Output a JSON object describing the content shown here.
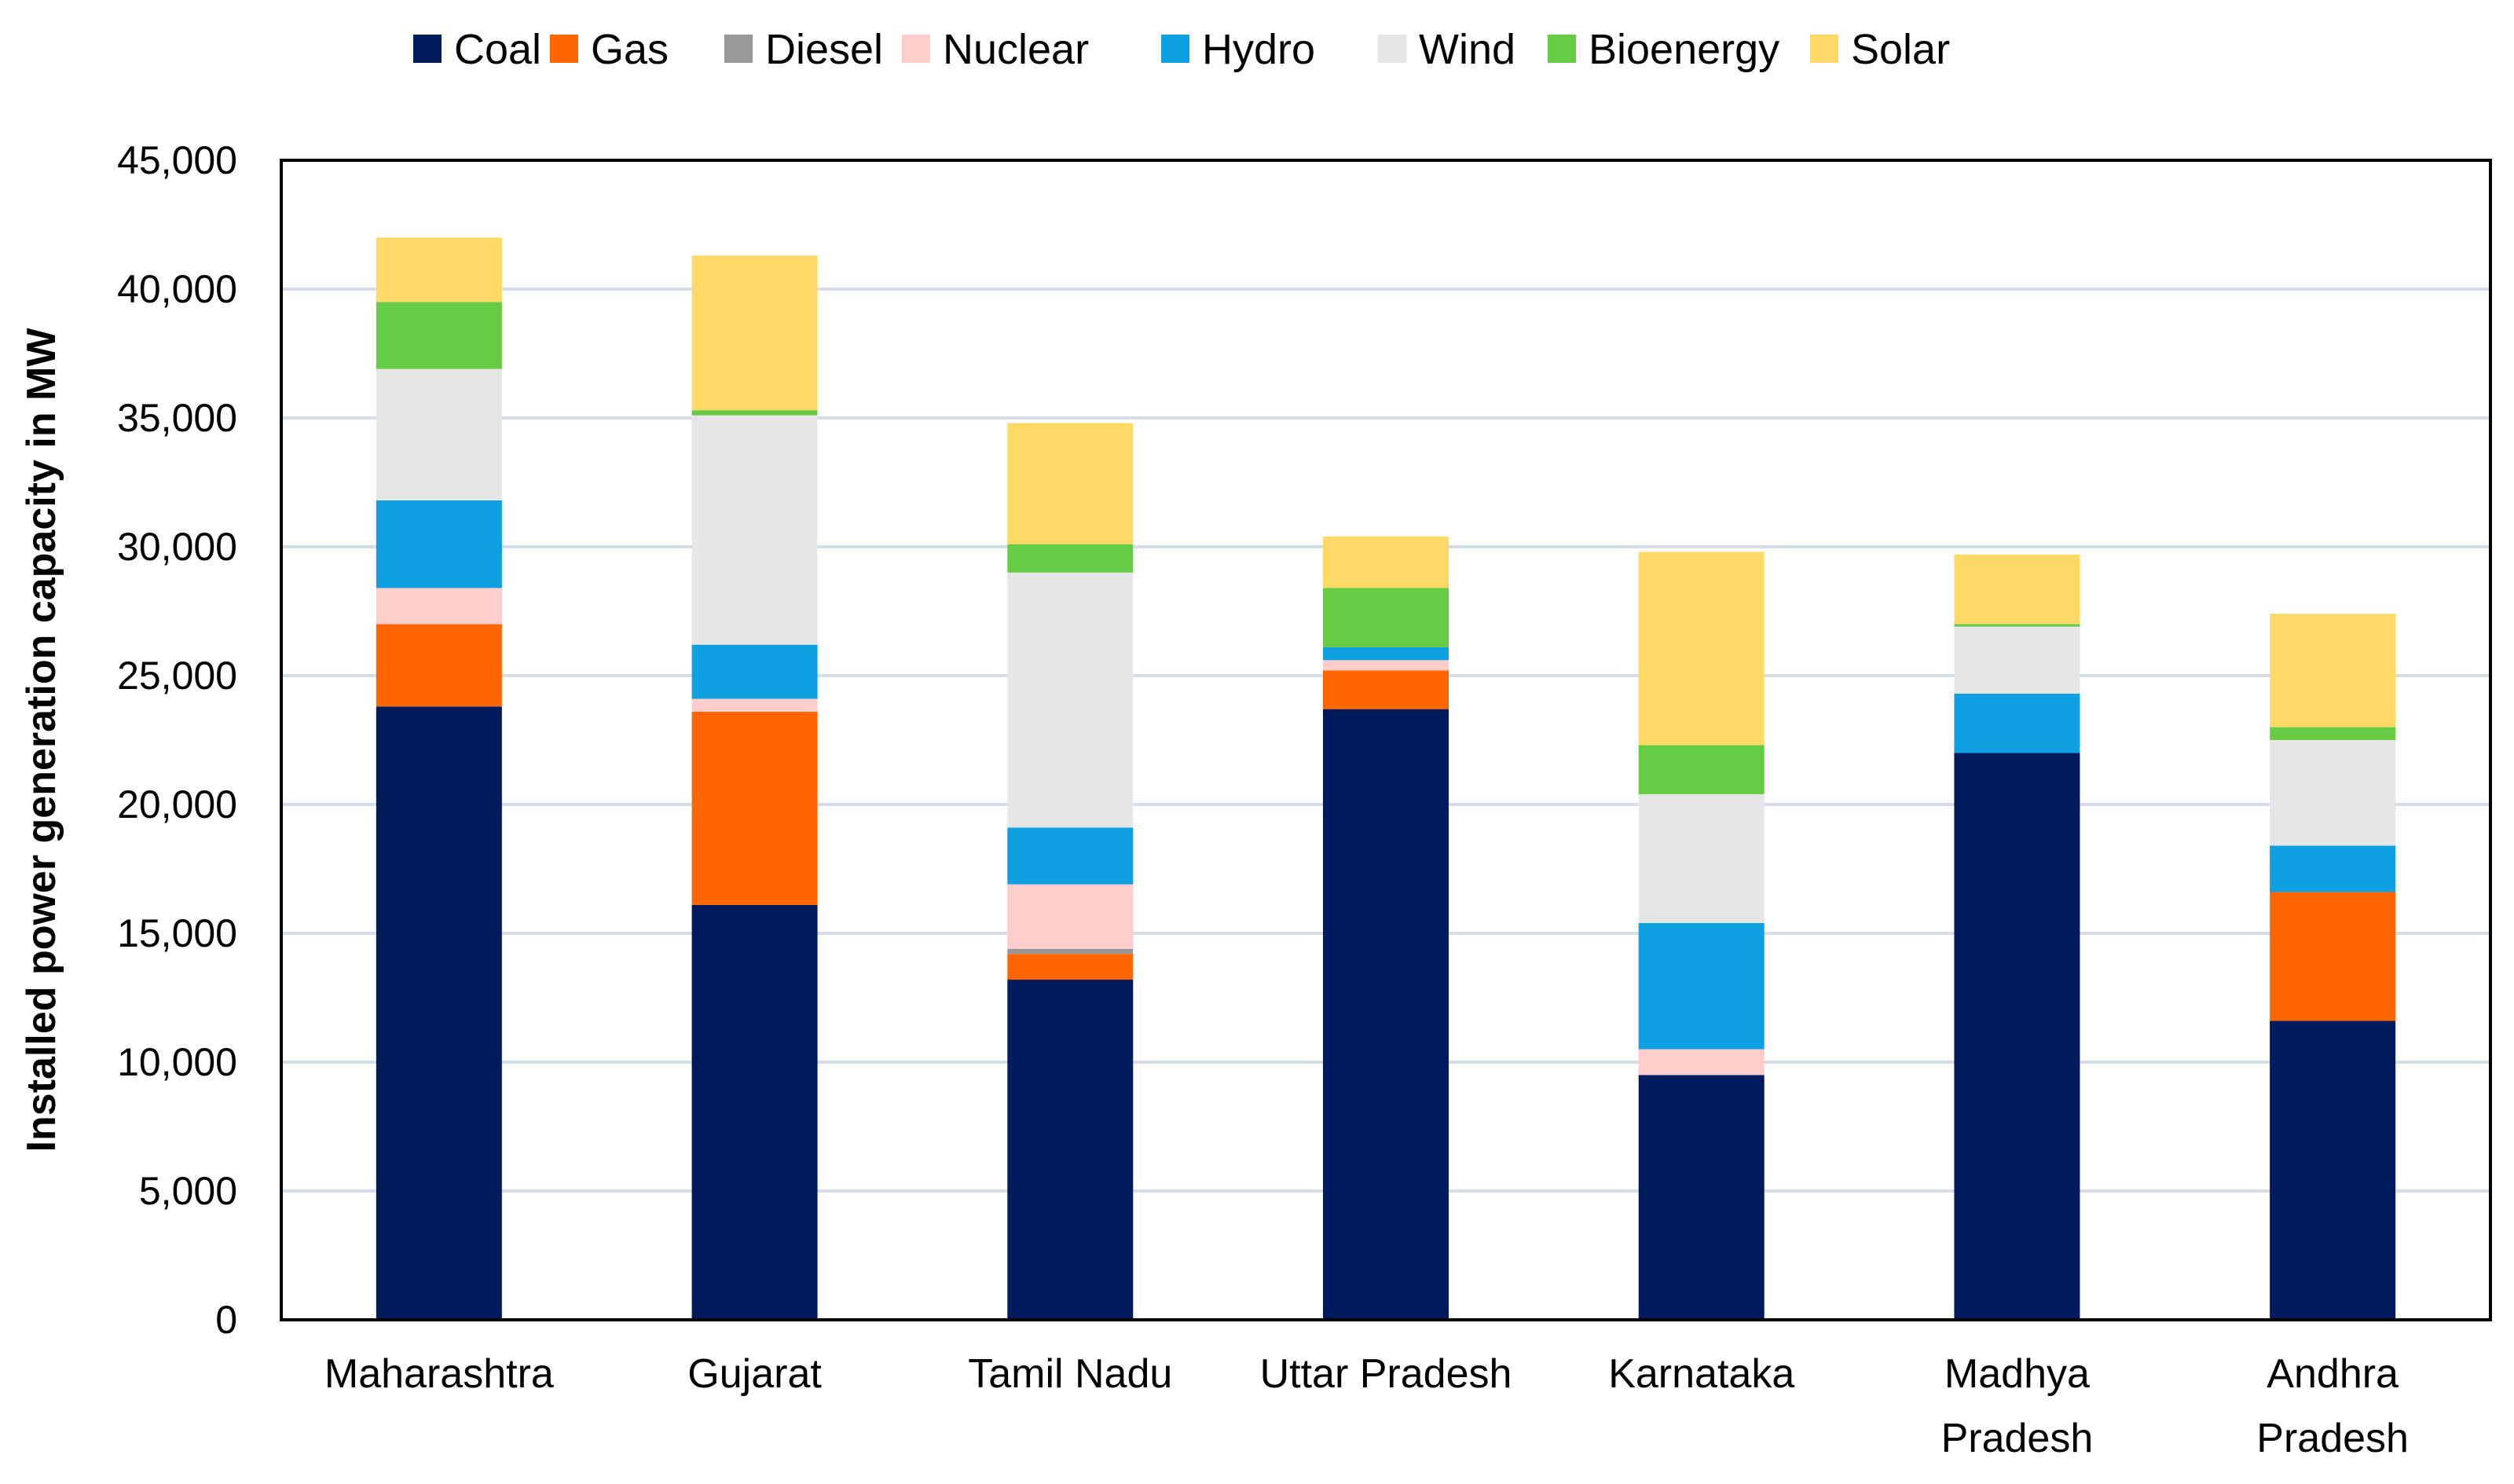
{
  "chart_data": {
    "type": "bar",
    "stacked": true,
    "categories": [
      [
        "Maharashtra"
      ],
      [
        "Gujarat"
      ],
      [
        "Tamil Nadu"
      ],
      [
        "Uttar Pradesh"
      ],
      [
        "Karnataka"
      ],
      [
        "Madhya",
        "Pradesh"
      ],
      [
        "Andhra",
        "Pradesh"
      ]
    ],
    "ylabel": "Installed power generation capacity in MW",
    "xlabel": "",
    "ylim": [
      0,
      45000
    ],
    "yticks": [
      0,
      5000,
      10000,
      15000,
      20000,
      25000,
      30000,
      35000,
      40000,
      45000
    ],
    "ytick_labels": [
      "0",
      "5,000",
      "10,000",
      "15,000",
      "20,000",
      "25,000",
      "30,000",
      "35,000",
      "40,000",
      "45,000"
    ],
    "grid": true,
    "legend_position": "top",
    "series": [
      {
        "name": "Coal",
        "color": "#001a5e",
        "values": [
          23800,
          16100,
          13200,
          23700,
          9500,
          22000,
          11600
        ]
      },
      {
        "name": "Gas",
        "color": "#ff6600",
        "values": [
          3200,
          7500,
          1000,
          1500,
          0,
          0,
          5000
        ]
      },
      {
        "name": "Diesel",
        "color": "#999999",
        "values": [
          0,
          0,
          200,
          0,
          0,
          0,
          0
        ]
      },
      {
        "name": "Nuclear",
        "color": "#ffcccc",
        "values": [
          1400,
          500,
          2500,
          400,
          1000,
          0,
          0
        ]
      },
      {
        "name": "Hydro",
        "color": "#0ea0e0",
        "values": [
          3400,
          2100,
          2200,
          500,
          4900,
          2300,
          1800
        ]
      },
      {
        "name": "Wind",
        "color": "#e6e6e6",
        "values": [
          5100,
          8900,
          9900,
          0,
          5000,
          2600,
          4100
        ]
      },
      {
        "name": "Bioenergy",
        "color": "#66cc44",
        "values": [
          2600,
          200,
          1100,
          2300,
          1900,
          100,
          500
        ]
      },
      {
        "name": "Solar",
        "color": "#ffd966",
        "values": [
          2500,
          6000,
          4700,
          2000,
          7500,
          2700,
          4400
        ]
      }
    ]
  }
}
